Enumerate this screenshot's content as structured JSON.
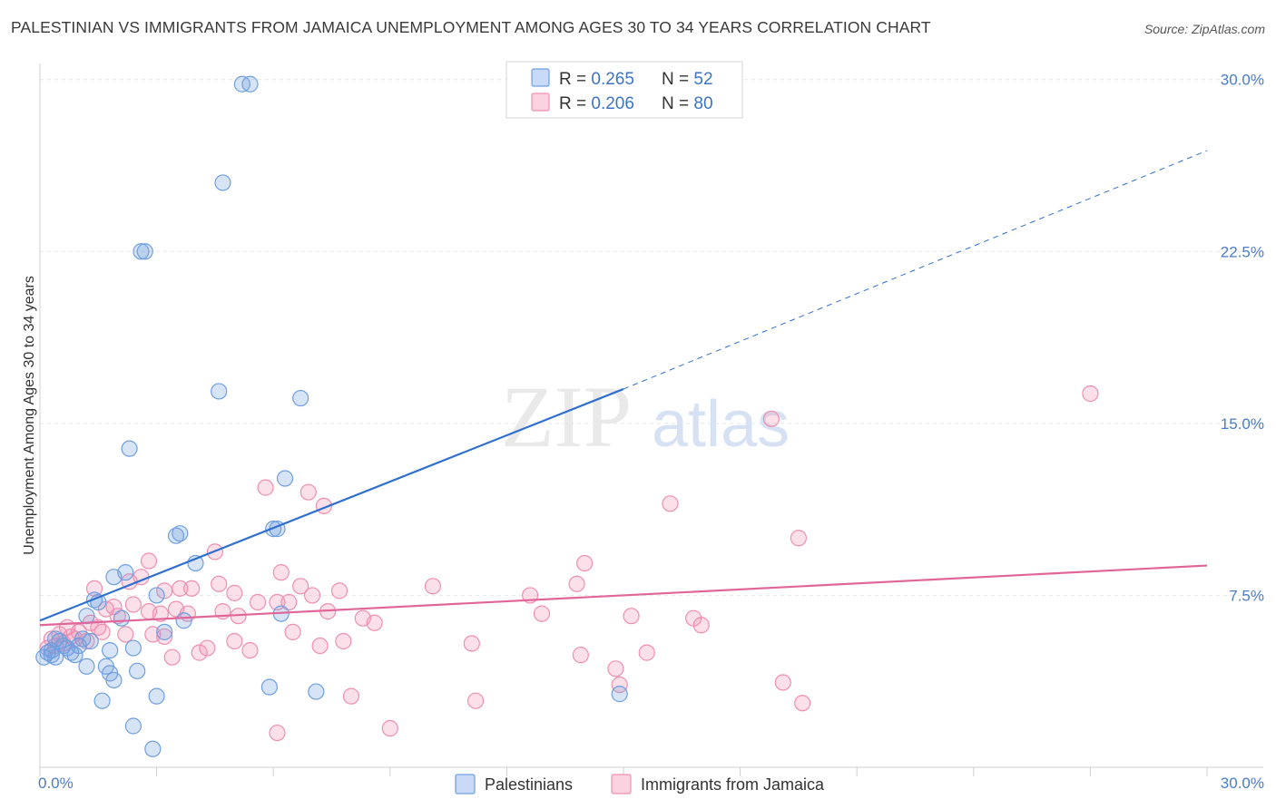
{
  "title": "PALESTINIAN VS IMMIGRANTS FROM JAMAICA UNEMPLOYMENT AMONG AGES 30 TO 34 YEARS CORRELATION CHART",
  "source": "Source: ZipAtlas.com",
  "watermark": {
    "zip": "ZIP",
    "atlas": "atlas"
  },
  "legend": {
    "rows": [
      {
        "r_label": "R = ",
        "r_value": "0.265",
        "n_label": "N = ",
        "n_value": "52"
      },
      {
        "r_label": "R = ",
        "r_value": "0.206",
        "n_label": "N = ",
        "n_value": "80"
      }
    ]
  },
  "bottom_legend": [
    "Palestinians",
    "Immigrants from Jamaica"
  ],
  "chart_data": {
    "type": "scatter",
    "title": "PALESTINIAN VS IMMIGRANTS FROM JAMAICA UNEMPLOYMENT AMONG AGES 30 TO 34 YEARS CORRELATION CHART",
    "xlabel": "",
    "ylabel": "Unemployment Among Ages 30 to 34 years",
    "xlim": [
      0,
      30
    ],
    "ylim": [
      0,
      30.7
    ],
    "x_tick_labels": [
      "0.0%",
      "30.0%"
    ],
    "y_ticks": [
      7.5,
      15.0,
      22.5,
      30.0
    ],
    "y_tick_labels": [
      "7.5%",
      "15.0%",
      "22.5%",
      "30.0%"
    ],
    "grid": true,
    "colors": {
      "blue": "#6f9fe0",
      "blue_line": "#2f6fce",
      "pink": "#ef8fb0",
      "pink_line": "#e0669a"
    },
    "series": [
      {
        "name": "Palestinians",
        "color": "#6f9fe0",
        "trend": {
          "x0": 0,
          "y0": 6.4,
          "x1": 15,
          "y1": 16.5,
          "dash_to_x": 30,
          "dash_to_y": 26.9
        },
        "points": [
          [
            5.2,
            29.8
          ],
          [
            5.4,
            29.8
          ],
          [
            4.7,
            25.5
          ],
          [
            2.6,
            22.5
          ],
          [
            2.7,
            22.5
          ],
          [
            4.6,
            16.4
          ],
          [
            6.7,
            16.1
          ],
          [
            2.3,
            13.9
          ],
          [
            6.3,
            12.6
          ],
          [
            3.5,
            10.1
          ],
          [
            3.6,
            10.2
          ],
          [
            6.0,
            10.4
          ],
          [
            6.1,
            10.4
          ],
          [
            4.0,
            8.9
          ],
          [
            2.2,
            8.5
          ],
          [
            1.9,
            8.3
          ],
          [
            3.0,
            7.5
          ],
          [
            1.4,
            7.3
          ],
          [
            1.5,
            7.2
          ],
          [
            1.2,
            6.6
          ],
          [
            2.1,
            6.5
          ],
          [
            3.7,
            6.4
          ],
          [
            3.2,
            5.9
          ],
          [
            1.1,
            5.6
          ],
          [
            1.3,
            5.5
          ],
          [
            0.4,
            5.6
          ],
          [
            0.6,
            5.3
          ],
          [
            0.7,
            5.2
          ],
          [
            0.3,
            5.1
          ],
          [
            1.8,
            5.1
          ],
          [
            2.4,
            5.2
          ],
          [
            0.2,
            5.0
          ],
          [
            0.8,
            5.0
          ],
          [
            0.9,
            4.9
          ],
          [
            0.1,
            4.8
          ],
          [
            0.4,
            4.8
          ],
          [
            1.2,
            4.4
          ],
          [
            1.7,
            4.4
          ],
          [
            2.5,
            4.2
          ],
          [
            1.8,
            4.1
          ],
          [
            1.9,
            3.8
          ],
          [
            6.2,
            6.7
          ],
          [
            3.0,
            3.1
          ],
          [
            1.6,
            2.9
          ],
          [
            2.4,
            1.8
          ],
          [
            2.9,
            0.8
          ],
          [
            5.9,
            3.5
          ],
          [
            7.1,
            3.3
          ],
          [
            14.9,
            3.2
          ],
          [
            0.5,
            5.5
          ],
          [
            1.0,
            5.3
          ],
          [
            0.3,
            4.9
          ]
        ]
      },
      {
        "name": "Immigrants from Jamaica",
        "color": "#ef8fb0",
        "trend": {
          "x0": 0,
          "y0": 6.2,
          "x1": 30,
          "y1": 8.8
        },
        "points": [
          [
            27.0,
            16.3
          ],
          [
            18.8,
            15.2
          ],
          [
            16.2,
            11.5
          ],
          [
            7.3,
            11.4
          ],
          [
            5.8,
            12.2
          ],
          [
            6.9,
            12.0
          ],
          [
            19.5,
            10.0
          ],
          [
            4.5,
            9.4
          ],
          [
            14.0,
            8.9
          ],
          [
            2.8,
            9.0
          ],
          [
            6.2,
            8.5
          ],
          [
            2.6,
            8.3
          ],
          [
            2.3,
            8.1
          ],
          [
            4.6,
            8.0
          ],
          [
            6.7,
            7.9
          ],
          [
            13.8,
            8.0
          ],
          [
            10.1,
            7.9
          ],
          [
            1.4,
            7.8
          ],
          [
            3.6,
            7.8
          ],
          [
            3.2,
            7.7
          ],
          [
            3.9,
            7.8
          ],
          [
            7.7,
            7.7
          ],
          [
            5.0,
            7.6
          ],
          [
            12.6,
            7.5
          ],
          [
            7.0,
            7.5
          ],
          [
            5.6,
            7.2
          ],
          [
            6.1,
            7.2
          ],
          [
            6.4,
            7.2
          ],
          [
            2.4,
            7.1
          ],
          [
            1.9,
            7.0
          ],
          [
            1.7,
            6.9
          ],
          [
            3.5,
            6.9
          ],
          [
            4.7,
            6.8
          ],
          [
            2.8,
            6.8
          ],
          [
            3.8,
            6.7
          ],
          [
            7.4,
            6.8
          ],
          [
            5.1,
            6.6
          ],
          [
            3.1,
            6.7
          ],
          [
            12.9,
            6.7
          ],
          [
            15.2,
            6.6
          ],
          [
            16.8,
            6.5
          ],
          [
            8.3,
            6.5
          ],
          [
            8.6,
            6.3
          ],
          [
            17.0,
            6.2
          ],
          [
            0.7,
            6.1
          ],
          [
            1.0,
            5.9
          ],
          [
            1.6,
            5.9
          ],
          [
            0.5,
            5.8
          ],
          [
            2.2,
            5.8
          ],
          [
            0.8,
            5.7
          ],
          [
            0.3,
            5.6
          ],
          [
            1.2,
            5.5
          ],
          [
            0.4,
            5.3
          ],
          [
            5.0,
            5.5
          ],
          [
            7.2,
            5.3
          ],
          [
            3.2,
            5.7
          ],
          [
            4.3,
            5.2
          ],
          [
            5.4,
            5.1
          ],
          [
            11.1,
            5.4
          ],
          [
            7.8,
            5.5
          ],
          [
            15.6,
            5.0
          ],
          [
            13.9,
            4.9
          ],
          [
            14.8,
            4.3
          ],
          [
            3.4,
            4.8
          ],
          [
            4.1,
            5.0
          ],
          [
            6.5,
            5.9
          ],
          [
            2.9,
            5.8
          ],
          [
            19.1,
            3.7
          ],
          [
            14.9,
            3.6
          ],
          [
            8.0,
            3.1
          ],
          [
            11.2,
            2.9
          ],
          [
            19.6,
            2.8
          ],
          [
            9.0,
            1.7
          ],
          [
            6.1,
            1.5
          ],
          [
            0.6,
            5.4
          ],
          [
            1.5,
            6.1
          ],
          [
            0.2,
            5.2
          ],
          [
            2.0,
            6.6
          ],
          [
            0.9,
            5.6
          ],
          [
            1.3,
            6.3
          ]
        ]
      }
    ]
  }
}
